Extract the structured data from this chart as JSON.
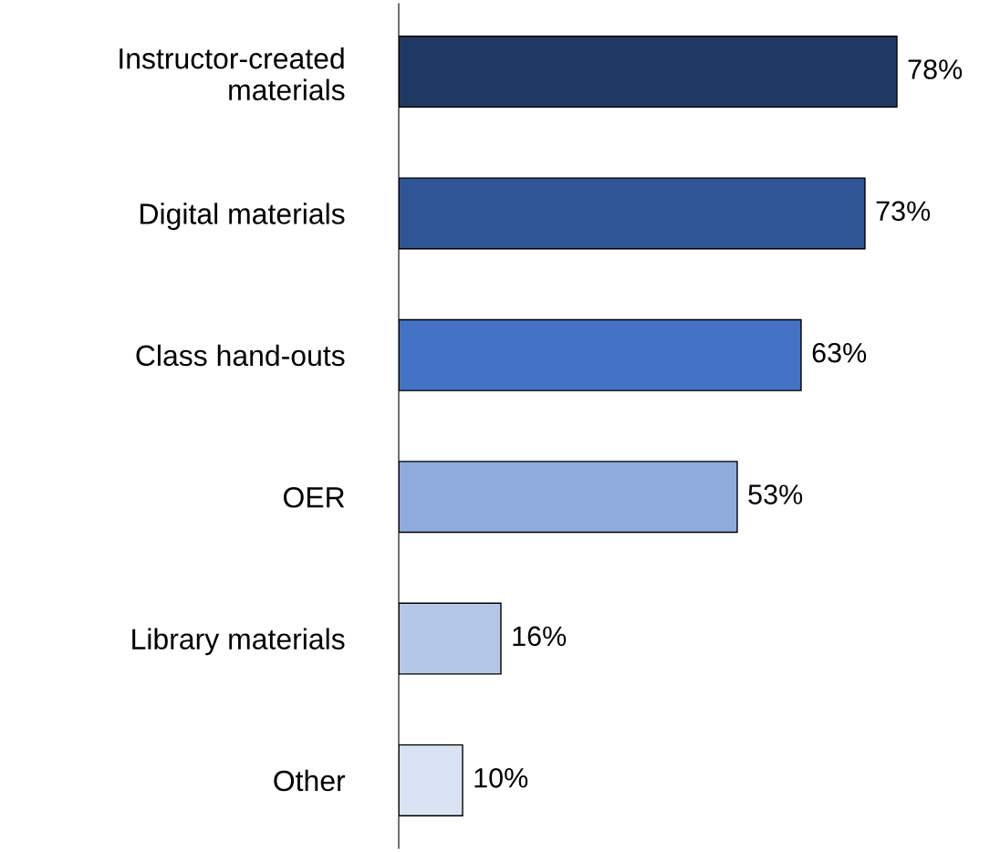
{
  "chart_data": {
    "type": "bar",
    "orientation": "horizontal",
    "categories": [
      "Instructor-created\nmaterials",
      "Digital materials",
      "Class hand-outs",
      "OER",
      "Library materials",
      "Other"
    ],
    "values": [
      78,
      73,
      63,
      53,
      16,
      10
    ],
    "colors": [
      "#203864",
      "#2f5597",
      "#4472c4",
      "#8faadc",
      "#b4c7e7",
      "#dae3f3"
    ],
    "value_labels": [
      "78%",
      "73%",
      "63%",
      "53%",
      "16%",
      "10%"
    ],
    "grid": false,
    "legend": false
  }
}
